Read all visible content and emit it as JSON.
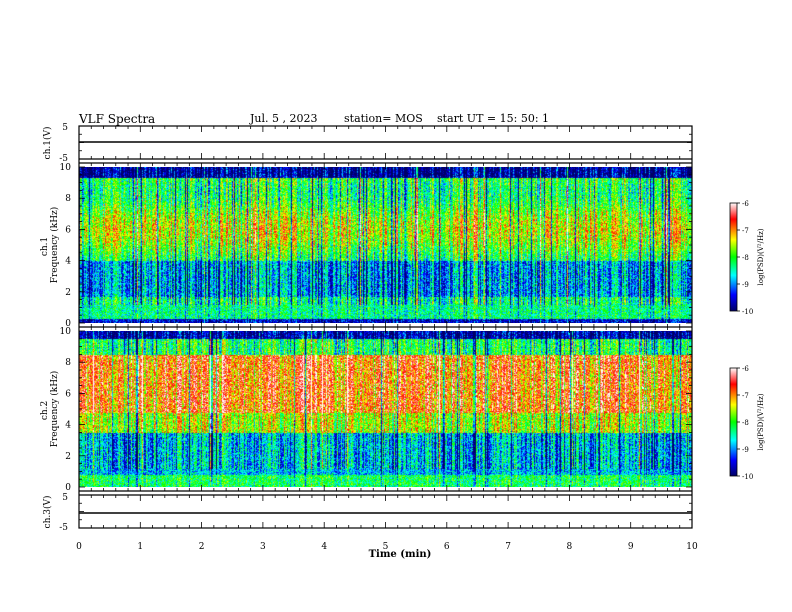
{
  "header": {
    "title": "VLF Spectra",
    "date": "Jul. 5 , 2023",
    "station": "station= MOS",
    "start_ut": "start UT = 15: 50: 1"
  },
  "chart_data": [
    {
      "type": "line",
      "panel": "ch1-waveform",
      "ylabel": "ch.1(V)",
      "yticks": [
        "5",
        "-5"
      ],
      "ylim": [
        -5,
        5
      ],
      "trace_level": 0
    },
    {
      "type": "heatmap",
      "panel": "ch1-spectrogram",
      "ylabel": "ch.1\nFrequency (kHz)",
      "ylabel_lines": [
        "ch.1",
        "Frequency (kHz)"
      ],
      "ylim": [
        0,
        10
      ],
      "yticks": [
        0,
        2,
        4,
        6,
        8,
        10
      ],
      "colorbar": {
        "label": "log(PSD)(V²/Hz)",
        "ticks": [
          "-6",
          "-7",
          "-8",
          "-9",
          "-10"
        ],
        "range": [
          -10,
          -6
        ],
        "colors": [
          "#000066",
          "#0000ff",
          "#00ffff",
          "#00ff00",
          "#ffff00",
          "#ff0000",
          "#ffffff"
        ]
      }
    },
    {
      "type": "heatmap",
      "panel": "ch2-spectrogram",
      "ylabel": "ch.2\nFrequency (kHz)",
      "ylabel_lines": [
        "ch.2",
        "Frequency (kHz)"
      ],
      "ylim": [
        0,
        10
      ],
      "yticks": [
        0,
        2,
        4,
        6,
        8,
        10
      ],
      "colorbar": {
        "label": "log(PSD)(V²/Hz)",
        "ticks": [
          "-6",
          "-7",
          "-8",
          "-9",
          "-10"
        ],
        "range": [
          -10,
          -6
        ],
        "colors": [
          "#000066",
          "#0000ff",
          "#00ffff",
          "#00ff00",
          "#ffff00",
          "#ff0000",
          "#ffffff"
        ]
      }
    },
    {
      "type": "line",
      "panel": "ch3-waveform",
      "ylabel": "ch.3(V)",
      "yticks": [
        "5",
        "-5"
      ],
      "ylim": [
        -5,
        5
      ],
      "trace_level": 0
    }
  ],
  "xaxis": {
    "label": "Time (min)",
    "ticks": [
      "0",
      "1",
      "2",
      "3",
      "4",
      "5",
      "6",
      "7",
      "8",
      "9",
      "10"
    ],
    "xlim": [
      0,
      10
    ]
  }
}
